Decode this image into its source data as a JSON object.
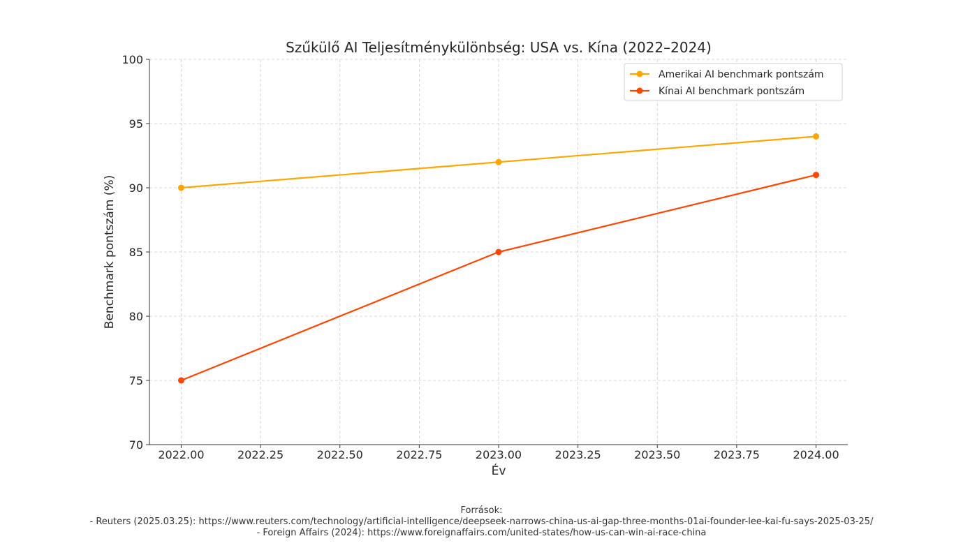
{
  "chart_data": {
    "type": "line",
    "title": "Szűkülő AI Teljesítménykülönbség: USA vs. Kína (2022–2024)",
    "xlabel": "Év",
    "ylabel": "Benchmark pontszám (%)",
    "x": [
      2022,
      2023,
      2024
    ],
    "xlim": [
      2021.9,
      2024.1
    ],
    "ylim": [
      70,
      100
    ],
    "xticks": [
      "2022.00",
      "2022.25",
      "2022.50",
      "2022.75",
      "2023.00",
      "2023.25",
      "2023.50",
      "2023.75",
      "2024.00"
    ],
    "yticks": [
      "70",
      "75",
      "80",
      "85",
      "90",
      "95",
      "100"
    ],
    "grid": true,
    "legend_position": "top-right",
    "series": [
      {
        "name": "Amerikai AI benchmark pontszám",
        "values": [
          90,
          92,
          94
        ],
        "color": "#FFA500"
      },
      {
        "name": "Kínai AI benchmark pontszám",
        "values": [
          75,
          85,
          91
        ],
        "color": "#FF4500"
      }
    ]
  },
  "sources": {
    "heading": "Források:",
    "lines": [
      "- Reuters (2025.03.25): https://www.reuters.com/technology/artificial-intelligence/deepseek-narrows-china-us-ai-gap-three-months-01ai-founder-lee-kai-fu-says-2025-03-25/",
      "- Foreign Affairs (2024): https://www.foreignaffairs.com/united-states/how-us-can-win-ai-race-china"
    ]
  }
}
